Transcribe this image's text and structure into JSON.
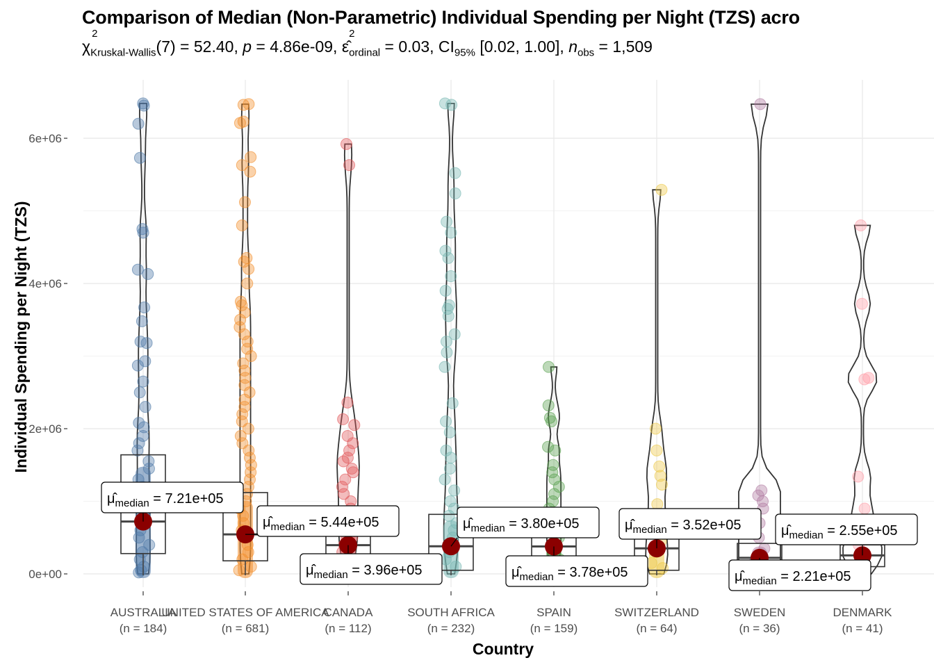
{
  "chart_data": {
    "type": "violin-box-scatter",
    "title": "Comparison of Median (Non-Parametric) Individual Spending per Night (TZS) acro",
    "subtitle": {
      "test": "Kruskal-Wallis",
      "df": "7",
      "statistic": "52.40",
      "p": "4.86e-09",
      "effect_size_label": "ordinal",
      "effect_size": "0.03",
      "ci_level": "95%",
      "ci": "[0.02, 1.00]",
      "n_obs": "1,509"
    },
    "xlabel": "Country",
    "ylabel": "Individual Spending per Night (TZS)",
    "ylim": [
      -100000,
      6500000
    ],
    "yticks": [
      0,
      2000000,
      4000000,
      6000000
    ],
    "ytick_labels": [
      "0e+00",
      "2e+06",
      "4e+06",
      "6e+06"
    ],
    "grid": true,
    "groups": [
      {
        "name": "AUSTRALIA",
        "n_label": "(n = 184)",
        "color": "#4E79A7",
        "median": 721000,
        "median_label": "7.21e+05",
        "q1": 280000,
        "q3": 1640000,
        "points": [
          6480000,
          6450000,
          6200000,
          5730000,
          4750000,
          4700000,
          4190000,
          4130000,
          3670000,
          3480000,
          3200000,
          3180000,
          2930000,
          2870000,
          2650000,
          2500000,
          2300000,
          2080000,
          2020000,
          1900000,
          1800000,
          1700000,
          1550000,
          1450000,
          1300000,
          1200000,
          1100000,
          1000000,
          900000,
          800000,
          700000,
          600000,
          500000,
          400000,
          300000,
          200000,
          100000,
          50000,
          20000
        ]
      },
      {
        "name": "UNITED STATES OF AMERICA",
        "n_label": "(n = 681)",
        "color": "#F28E2B",
        "median": 544000,
        "median_label": "5.44e+05",
        "q1": 180000,
        "q3": 1120000,
        "points": [
          6470000,
          6460000,
          6230000,
          6210000,
          5740000,
          5630000,
          5540000,
          5120000,
          4800000,
          4350000,
          4300000,
          4200000,
          4000000,
          3750000,
          3700000,
          3600000,
          3500000,
          3400000,
          3300000,
          3200000,
          3100000,
          3000000,
          2900000,
          2800000,
          2700000,
          2600000,
          2500000,
          2400000,
          2300000,
          2200000,
          2100000,
          2000000,
          1900000,
          1800000,
          1700000,
          1600000,
          1500000,
          1400000,
          1300000,
          1200000,
          1100000,
          1000000,
          900000,
          800000,
          700000,
          600000,
          500000,
          400000,
          300000,
          200000,
          100000,
          50000
        ]
      },
      {
        "name": "CANADA",
        "n_label": "(n = 112)",
        "color": "#E15759",
        "median": 396000,
        "median_label": "3.96e+05",
        "q1": 200000,
        "q3": 700000,
        "points": [
          5920000,
          5630000,
          2360000,
          2130000,
          2050000,
          1900000,
          1800000,
          1700000,
          1600000,
          1550000,
          1450000,
          1400000,
          1300000,
          1200000,
          1100000,
          1000000,
          900000,
          800000,
          700000,
          600000,
          500000,
          400000,
          300000,
          200000
        ]
      },
      {
        "name": "SOUTH AFRICA",
        "n_label": "(n = 232)",
        "color": "#76B7B2",
        "median": 380000,
        "median_label": "3.80e+05",
        "q1": 50000,
        "q3": 820000,
        "points": [
          6480000,
          6460000,
          5520000,
          5240000,
          4850000,
          4700000,
          4450000,
          4350000,
          4100000,
          3900000,
          3700000,
          3650000,
          3550000,
          3300000,
          3200000,
          3050000,
          2850000,
          2350000,
          2100000,
          1950000,
          1700000,
          1600000,
          1450000,
          1300000,
          1150000,
          1000000,
          900000,
          800000,
          700000,
          600000,
          500000,
          400000,
          300000,
          200000,
          100000
        ]
      },
      {
        "name": "SPAIN",
        "n_label": "(n = 159)",
        "color": "#59A14F",
        "median": 378000,
        "median_label": "3.78e+05",
        "q1": 200000,
        "q3": 520000,
        "points": [
          2850000,
          2320000,
          2150000,
          2100000,
          1750000,
          1700000,
          1500000,
          1400000,
          1300000,
          1200000,
          1100000,
          1000000,
          900000,
          800000,
          700000,
          600000,
          500000,
          400000,
          300000,
          200000
        ]
      },
      {
        "name": "SWITZERLAND",
        "n_label": "(n = 64)",
        "color": "#EDC948",
        "median": 352000,
        "median_label": "3.52e+05",
        "q1": 50000,
        "q3": 520000,
        "points": [
          5290000,
          2000000,
          1700000,
          1480000,
          1350000,
          1230000,
          960000,
          800000,
          600000,
          450000,
          300000,
          150000,
          80000
        ]
      },
      {
        "name": "SWEDEN",
        "n_label": "(n = 36)",
        "color": "#B07AA1",
        "median": 221000,
        "median_label": "2.21e+05",
        "q1": 150000,
        "q3": 420000,
        "points": [
          6470000,
          1150000,
          1080000,
          1000000,
          900000,
          700000,
          500000,
          350000,
          250000,
          150000
        ]
      },
      {
        "name": "DENMARK",
        "n_label": "(n = 41)",
        "color": "#FF9DA7",
        "median": 255000,
        "median_label": "2.55e+05",
        "q1": 100000,
        "q3": 400000,
        "points": [
          4800000,
          3720000,
          2700000,
          2680000,
          1340000,
          900000,
          600000,
          400000,
          250000,
          150000
        ]
      }
    ],
    "median_label_prefix": "median"
  }
}
